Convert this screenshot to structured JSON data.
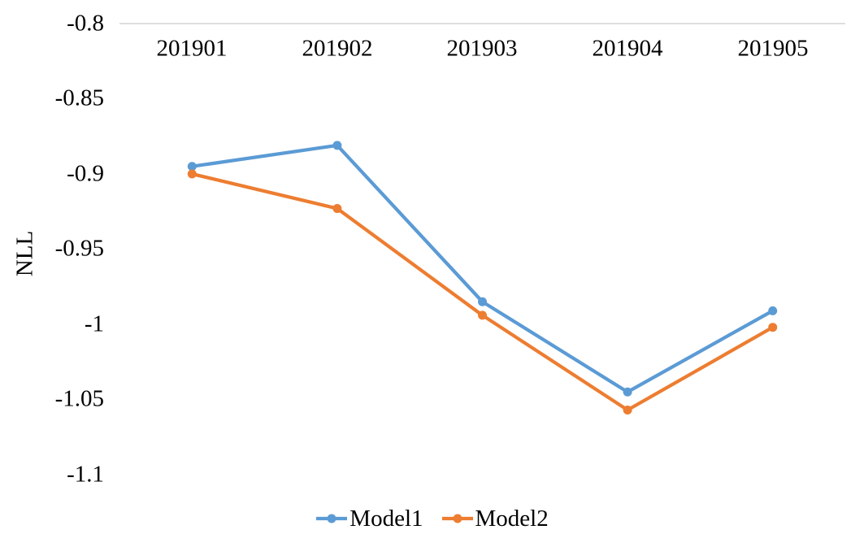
{
  "chart_data": {
    "type": "line",
    "title": "",
    "xlabel": "",
    "ylabel": "NLL",
    "categories": [
      "201901",
      "201902",
      "201903",
      "201904",
      "201905"
    ],
    "series": [
      {
        "name": "Model1",
        "color": "#5B9BD5",
        "values": [
          -0.895,
          -0.881,
          -0.985,
          -1.045,
          -0.991
        ]
      },
      {
        "name": "Model2",
        "color": "#ED7D31",
        "values": [
          -0.9,
          -0.923,
          -0.994,
          -1.057,
          -1.002
        ]
      }
    ],
    "yaxis": {
      "max": -0.8,
      "min": -1.1,
      "tick_step": 0.05,
      "tick_labels": [
        "-0.8",
        "-0.85",
        "-0.9",
        "-0.95",
        "-1",
        "-1.05",
        "-1.1"
      ],
      "tick_values": [
        -0.8,
        -0.85,
        -0.9,
        -0.95,
        -1.0,
        -1.05,
        -1.1
      ]
    },
    "grid": false,
    "legend_position": "bottom",
    "axis_line_color": "#D9D9D9",
    "text_color": "#000000",
    "marker": "circle",
    "line_width": 4.25,
    "marker_radius": 5.5
  }
}
